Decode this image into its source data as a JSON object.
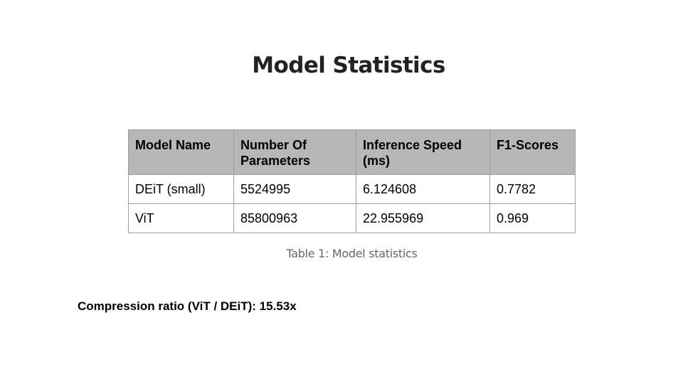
{
  "slide": {
    "title": "Model Statistics",
    "caption": "Table 1: Model statistics",
    "compression_note": "Compression ratio (ViT / DEiT): 15.53x"
  },
  "table": {
    "headers": [
      "Model Name",
      "Number Of Parameters",
      "Inference Speed (ms)",
      "F1-Scores"
    ],
    "rows": [
      [
        "DEiT (small)",
        "5524995",
        "6.124608",
        "0.7782"
      ],
      [
        "ViT",
        "85800963",
        "22.955969",
        "0.969"
      ]
    ]
  }
}
